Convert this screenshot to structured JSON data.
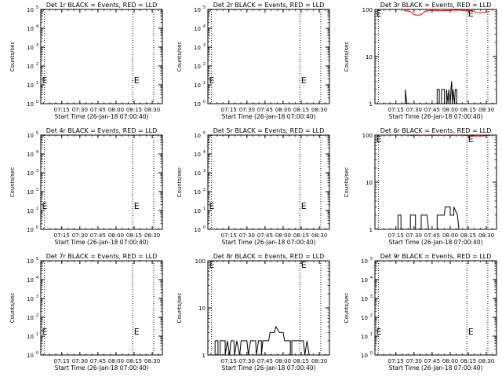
{
  "chart_data": [
    {
      "type": "line",
      "title": "Det 1r BLACK = Events, RED = LLD",
      "xlabel": "Start Time (26-Jan-18 07:00:40)",
      "ylabel": "Counts/sec",
      "x_ticks": [
        "07:15",
        "07:30",
        "07:45",
        "08:00",
        "08:15",
        "08:30"
      ],
      "y_scale": "log",
      "y_ticks": [
        "10^0",
        "10^1",
        "10^2",
        "10^3",
        "10^4",
        "10^5"
      ],
      "ylim": [
        1,
        100000
      ],
      "marker_label": "E",
      "series": []
    },
    {
      "type": "line",
      "title": "Det 2r BLACK = Events, RED = LLD",
      "xlabel": "Start Time (26-Jan-18 07:00:40)",
      "ylabel": "Counts/sec",
      "x_ticks": [
        "07:15",
        "07:30",
        "07:45",
        "08:00",
        "08:15",
        "08:30"
      ],
      "y_scale": "log",
      "y_ticks": [
        "10^0",
        "10^1",
        "10^2",
        "10^3",
        "10^4",
        "10^5"
      ],
      "ylim": [
        1,
        100000
      ],
      "marker_label": "E",
      "series": []
    },
    {
      "type": "line",
      "title": "Det 3r BLACK = Events, RED = LLD",
      "xlabel": "Start Time (26-Jan-18 07:00:40)",
      "ylabel": "Counts/sec",
      "x_ticks": [
        "07:15",
        "07:30",
        "07:45",
        "08:00",
        "08:15",
        "08:30"
      ],
      "y_scale": "log",
      "y_ticks": [
        "1",
        "10",
        "100"
      ],
      "ylim": [
        1,
        100
      ],
      "marker_label": "E",
      "series": [
        {
          "color": "#000000",
          "points": [
            [
              7.38,
              1
            ],
            [
              7.38,
              2
            ],
            [
              7.4,
              1
            ],
            [
              7.82,
              1
            ],
            [
              7.82,
              2
            ],
            [
              7.85,
              2
            ],
            [
              7.85,
              1
            ],
            [
              7.88,
              1
            ],
            [
              7.88,
              2
            ],
            [
              7.92,
              2
            ],
            [
              7.92,
              1
            ],
            [
              7.95,
              1
            ],
            [
              7.95,
              2
            ],
            [
              7.97,
              1
            ],
            [
              7.98,
              2
            ],
            [
              8.0,
              1
            ],
            [
              8.01,
              2
            ],
            [
              8.02,
              3
            ],
            [
              8.03,
              1
            ],
            [
              8.04,
              2
            ],
            [
              8.06,
              1
            ],
            [
              8.07,
              2
            ],
            [
              8.09,
              2
            ],
            [
              8.09,
              1
            ],
            [
              8.12,
              1
            ]
          ]
        },
        {
          "color": "#ff0000",
          "points": [
            [
              7.36,
              95
            ],
            [
              7.45,
              90
            ],
            [
              7.5,
              78
            ],
            [
              7.55,
              75
            ],
            [
              7.6,
              78
            ],
            [
              7.65,
              90
            ],
            [
              7.72,
              95
            ],
            [
              7.8,
              95
            ],
            [
              7.85,
              93
            ],
            [
              8.0,
              95
            ],
            [
              8.1,
              97
            ],
            [
              8.28,
              93
            ],
            [
              8.35,
              88
            ],
            [
              8.4,
              84
            ],
            [
              8.5,
              88
            ],
            [
              8.55,
              90
            ]
          ]
        }
      ]
    },
    {
      "type": "line",
      "title": "Det 4r BLACK = Events, RED = LLD",
      "xlabel": "Start Time (26-Jan-18 07:00:40)",
      "ylabel": "Counts/sec",
      "x_ticks": [
        "07:15",
        "07:30",
        "07:45",
        "08:00",
        "08:15",
        "08:30"
      ],
      "y_scale": "log",
      "y_ticks": [
        "10^0",
        "10^1",
        "10^2",
        "10^3",
        "10^4",
        "10^5"
      ],
      "ylim": [
        1,
        100000
      ],
      "marker_label": "E",
      "series": []
    },
    {
      "type": "line",
      "title": "Det 5r BLACK = Events, RED = LLD",
      "xlabel": "Start Time (26-Jan-18 07:00:40)",
      "ylabel": "Counts/sec",
      "x_ticks": [
        "07:15",
        "07:30",
        "07:45",
        "08:00",
        "08:15",
        "08:30"
      ],
      "y_scale": "log",
      "y_ticks": [
        "10^0",
        "10^1",
        "10^2",
        "10^3",
        "10^4",
        "10^5"
      ],
      "ylim": [
        1,
        100000
      ],
      "marker_label": "E",
      "series": []
    },
    {
      "type": "line",
      "title": "Det 6r BLACK = Events, RED = LLD",
      "xlabel": "Start Time (26-Jan-18 07:00:40)",
      "ylabel": "Counts/sec",
      "x_ticks": [
        "07:15",
        "07:30",
        "07:45",
        "08:00",
        "08:15",
        "08:30"
      ],
      "y_scale": "log",
      "y_ticks": [
        "1",
        "10",
        "100"
      ],
      "ylim": [
        1,
        100
      ],
      "marker_label": "E",
      "series": [
        {
          "color": "#000000",
          "points": [
            [
              7.28,
              1
            ],
            [
              7.28,
              2
            ],
            [
              7.32,
              2
            ],
            [
              7.32,
              1
            ],
            [
              7.45,
              1
            ],
            [
              7.45,
              2
            ],
            [
              7.52,
              2
            ],
            [
              7.52,
              1
            ],
            [
              7.6,
              1
            ],
            [
              7.6,
              2
            ],
            [
              7.68,
              2
            ],
            [
              7.7,
              1
            ],
            [
              7.82,
              1
            ],
            [
              7.82,
              2
            ],
            [
              7.92,
              2
            ],
            [
              7.93,
              3
            ],
            [
              8.0,
              3
            ],
            [
              8.0,
              2
            ],
            [
              8.05,
              2
            ],
            [
              8.05,
              3
            ],
            [
              8.1,
              2
            ],
            [
              8.12,
              1
            ]
          ]
        },
        {
          "color": "#ff0000",
          "points": [
            [
              7.45,
              97
            ],
            [
              7.6,
              99
            ],
            [
              7.75,
              98
            ],
            [
              7.9,
              99
            ],
            [
              8.0,
              98
            ],
            [
              8.12,
              99
            ],
            [
              8.27,
              97
            ],
            [
              8.35,
              95
            ],
            [
              8.45,
              96
            ],
            [
              8.55,
              98
            ]
          ]
        }
      ]
    },
    {
      "type": "line",
      "title": "Det 7r BLACK = Events, RED = LLD",
      "xlabel": "Start Time (26-Jan-18 07:00:40)",
      "ylabel": "Counts/sec",
      "x_ticks": [
        "07:15",
        "07:30",
        "07:45",
        "08:00",
        "08:15",
        "08:30"
      ],
      "y_scale": "log",
      "y_ticks": [
        "10^0",
        "10^1",
        "10^2",
        "10^3",
        "10^4",
        "10^5"
      ],
      "ylim": [
        1,
        100000
      ],
      "marker_label": "E",
      "series": []
    },
    {
      "type": "line",
      "title": "Det 8r BLACK = Events, RED = LLD",
      "xlabel": "Start Time (26-Jan-18 07:00:40)",
      "ylabel": "Counts/sec",
      "x_ticks": [
        "07:15",
        "07:30",
        "07:45",
        "08:00",
        "08:15",
        "08:30"
      ],
      "y_scale": "log",
      "y_ticks": [
        "1",
        "10",
        "100"
      ],
      "ylim": [
        1,
        100
      ],
      "marker_label": "E",
      "series": [
        {
          "color": "#000000",
          "points": [
            [
              7.06,
              1
            ],
            [
              7.06,
              2
            ],
            [
              7.1,
              2
            ],
            [
              7.1,
              1
            ],
            [
              7.13,
              1
            ],
            [
              7.13,
              2
            ],
            [
              7.2,
              2
            ],
            [
              7.2,
              1
            ],
            [
              7.23,
              2
            ],
            [
              7.26,
              1
            ],
            [
              7.28,
              2
            ],
            [
              7.32,
              2
            ],
            [
              7.33,
              1
            ],
            [
              7.36,
              2
            ],
            [
              7.4,
              1
            ],
            [
              7.42,
              2
            ],
            [
              7.5,
              2
            ],
            [
              7.52,
              1
            ],
            [
              7.55,
              2
            ],
            [
              7.62,
              2
            ],
            [
              7.63,
              1
            ],
            [
              7.66,
              2
            ],
            [
              7.7,
              2
            ],
            [
              7.7,
              1
            ],
            [
              7.72,
              2
            ],
            [
              7.8,
              2
            ],
            [
              7.82,
              3
            ],
            [
              7.88,
              3
            ],
            [
              7.9,
              4
            ],
            [
              7.95,
              3
            ],
            [
              8.0,
              3
            ],
            [
              8.02,
              2
            ],
            [
              8.1,
              2
            ],
            [
              8.1,
              1
            ],
            [
              8.12,
              1
            ],
            [
              8.12,
              2
            ],
            [
              8.28,
              2
            ],
            [
              8.3,
              1
            ],
            [
              8.33,
              2
            ],
            [
              8.36,
              1
            ]
          ]
        }
      ]
    },
    {
      "type": "line",
      "title": "Det 9r BLACK = Events, RED = LLD",
      "xlabel": "Start Time (26-Jan-18 07:00:40)",
      "ylabel": "Counts/sec",
      "x_ticks": [
        "07:15",
        "07:30",
        "07:45",
        "08:00",
        "08:15",
        "08:30"
      ],
      "y_scale": "log",
      "y_ticks": [
        "10^0",
        "10^1",
        "10^2",
        "10^3",
        "10^4",
        "10^5"
      ],
      "ylim": [
        1,
        100000
      ],
      "marker_label": "E",
      "series": []
    }
  ]
}
